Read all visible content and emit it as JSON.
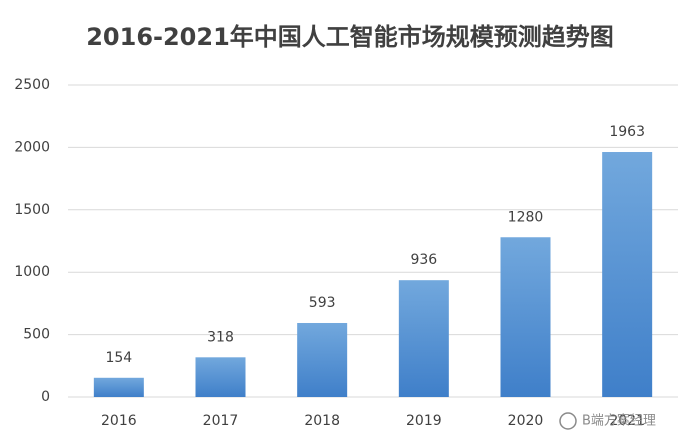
{
  "chart_data": {
    "type": "bar",
    "title": "2016-2021年中国人工智能市场规模预测趋势图",
    "categories": [
      "2016",
      "2017",
      "2018",
      "2019",
      "2020",
      "2021"
    ],
    "values": [
      154,
      318,
      593,
      936,
      1280,
      1963
    ],
    "color": "#5b9bd5",
    "ylim": [
      0,
      2500
    ],
    "yticks": [
      0,
      500,
      1000,
      1500,
      2000,
      2500
    ],
    "grid": true,
    "watermark": "B端方案经理"
  }
}
